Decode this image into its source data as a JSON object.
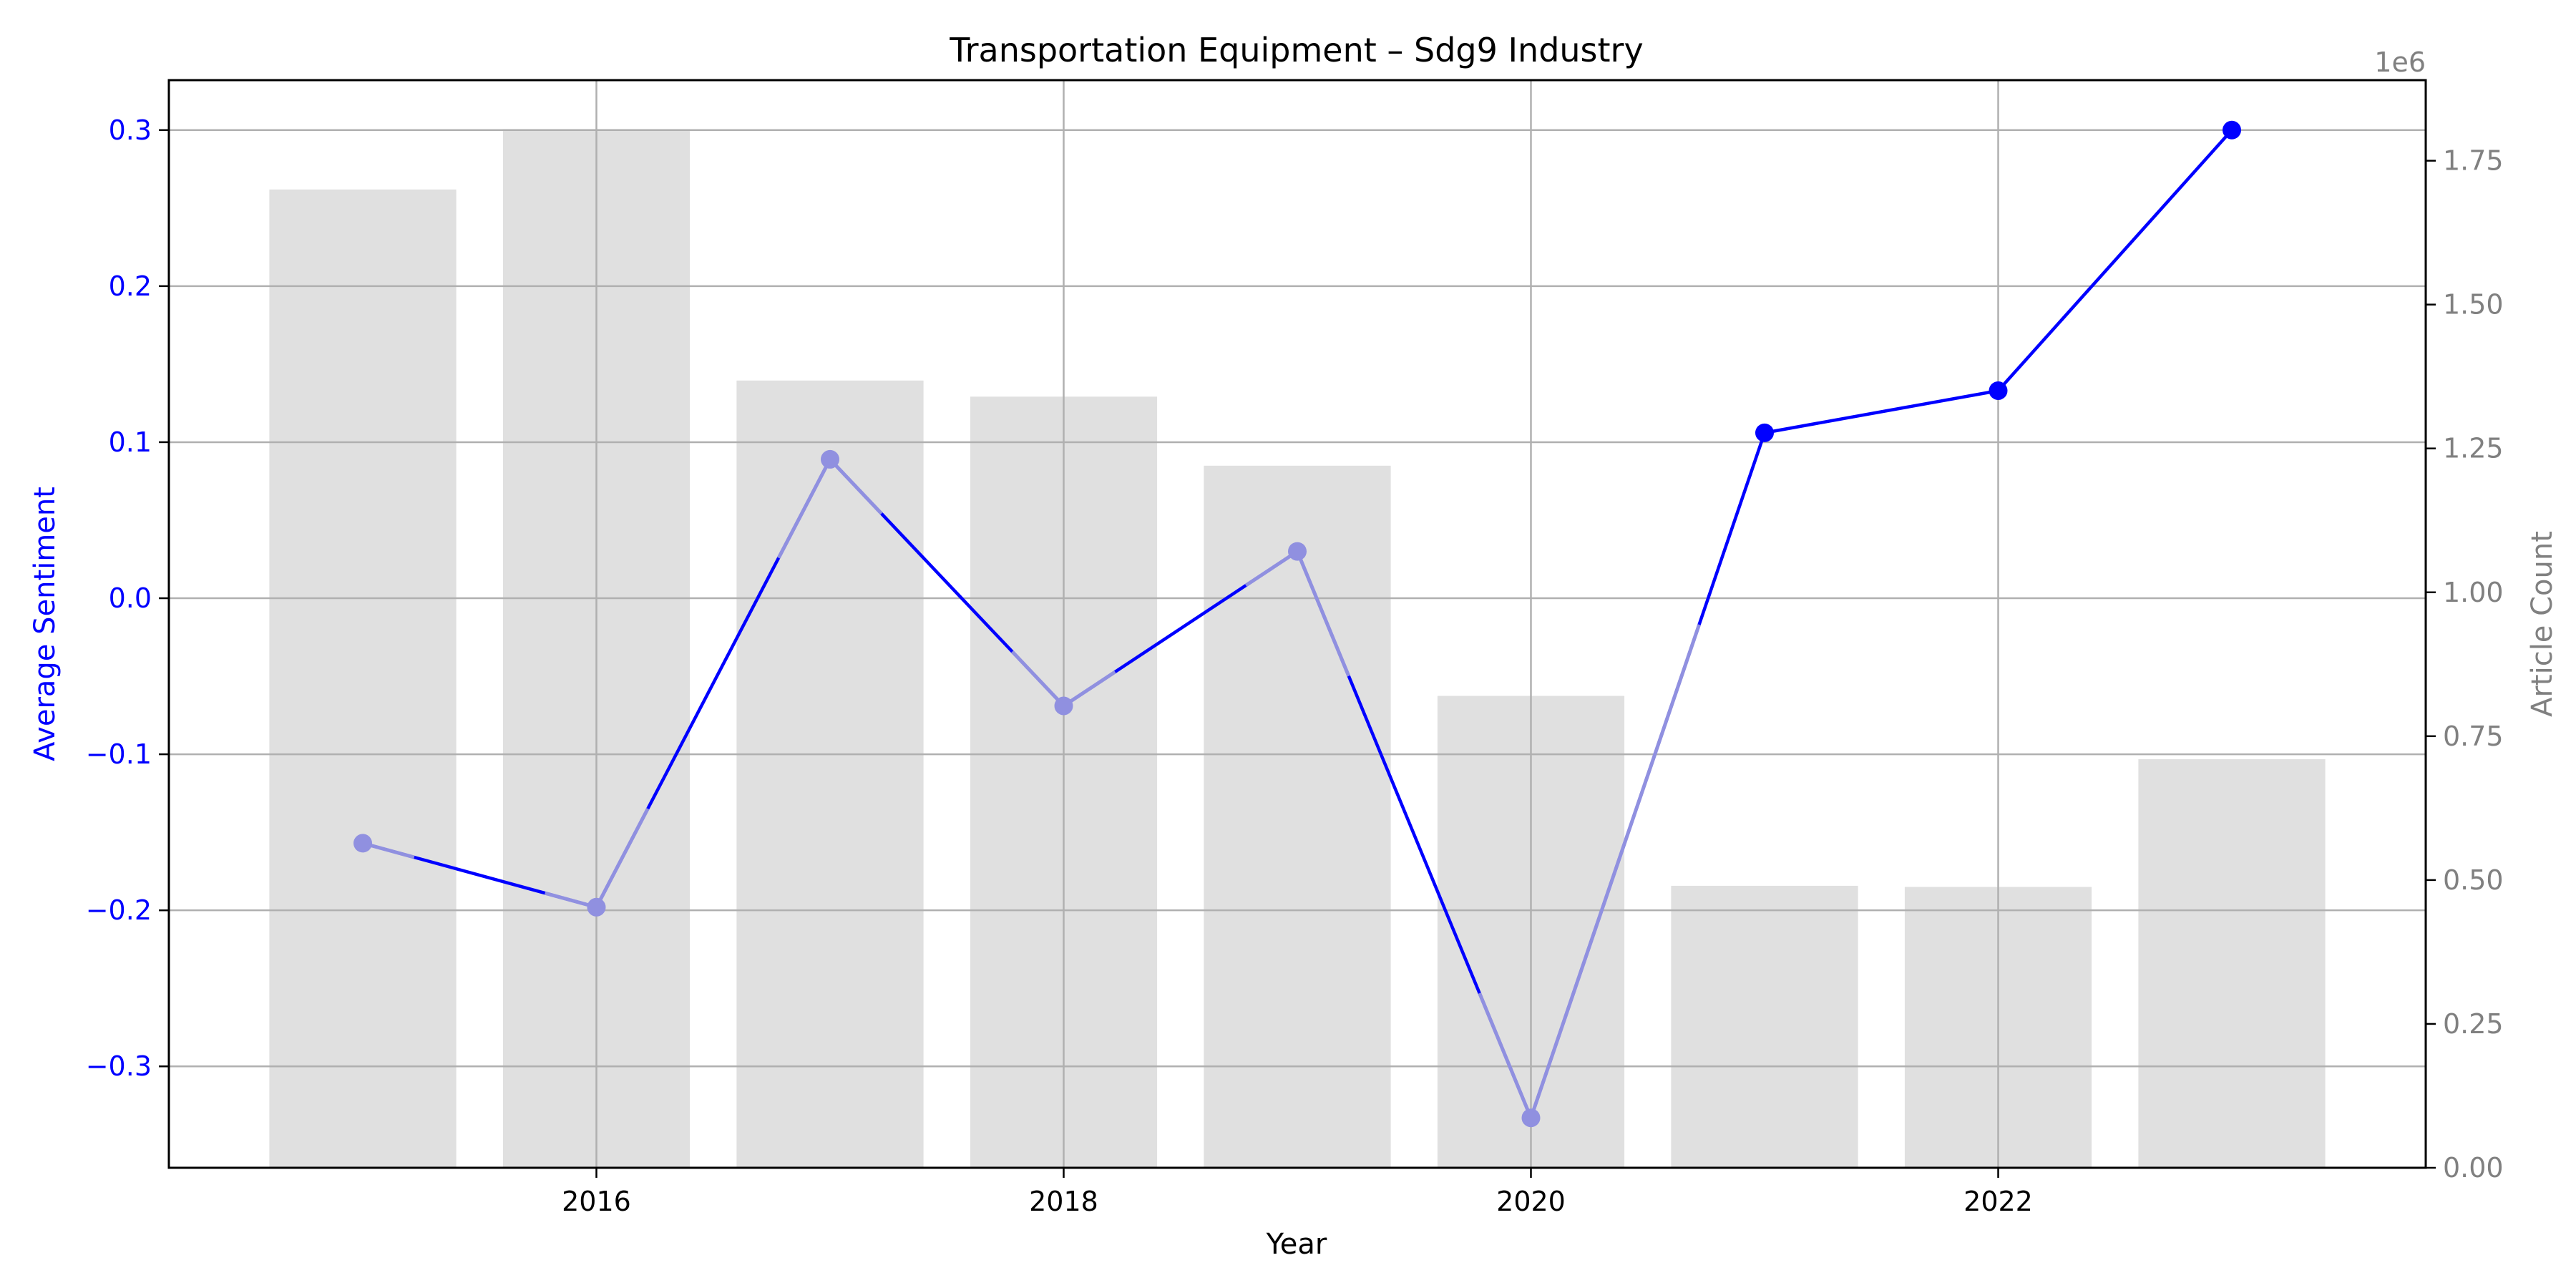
{
  "chart_data": {
    "type": "bar+line",
    "title": "Transportation Equipment – Sdg9 Industry",
    "xlabel": "Year",
    "ylabel_left": "Average Sentiment",
    "ylabel_right": "Article Count",
    "right_offset_label": "1e6",
    "x": [
      2015,
      2016,
      2017,
      2018,
      2019,
      2020,
      2021,
      2022,
      2023
    ],
    "x_ticks": [
      "2016",
      "2018",
      "2020",
      "2022"
    ],
    "bars": {
      "name": "Article Count",
      "color": "#e0e0e0",
      "values": [
        1700000,
        1805000,
        1368000,
        1340000,
        1220000,
        820000,
        490000,
        488000,
        710000
      ]
    },
    "line": {
      "name": "Average Sentiment",
      "color": "#0000ff",
      "faded_color": "#9090e0",
      "values": [
        -0.157,
        -0.198,
        0.089,
        -0.069,
        0.03,
        -0.333,
        0.106,
        0.133,
        0.3
      ],
      "faded_points": [
        true,
        true,
        true,
        true,
        true,
        true,
        false,
        false,
        false
      ]
    },
    "y_left": {
      "ylim": [
        -0.365,
        0.332
      ],
      "ticks": [
        -0.3,
        -0.2,
        -0.1,
        0.0,
        0.1,
        0.2,
        0.3
      ],
      "tick_labels": [
        "−0.3",
        "−0.2",
        "−0.1",
        "0.0",
        "0.1",
        "0.2",
        "0.3"
      ]
    },
    "y_right": {
      "ylim": [
        0,
        1.89
      ],
      "ticks": [
        0,
        0.25,
        0.5,
        0.75,
        1.0,
        1.25,
        1.5,
        1.75
      ],
      "tick_labels": [
        "0.00",
        "0.25",
        "0.50",
        "0.75",
        "1.00",
        "1.25",
        "1.50",
        "1.75"
      ]
    },
    "xlim": [
      2014.17,
      2023.83
    ],
    "grid": true
  }
}
